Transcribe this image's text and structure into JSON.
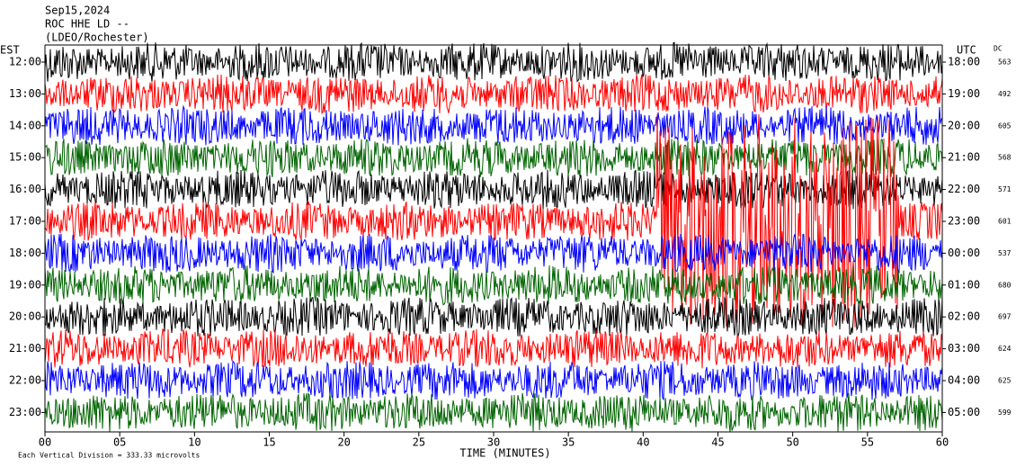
{
  "header": {
    "date": "Sep15,2024",
    "station": "ROC HHE LD --",
    "network": "(LDEO/Rochester)"
  },
  "chart_data": {
    "type": "helicorder",
    "left_label": "EST",
    "right_label": "UTC",
    "dc_label": "DC",
    "x_label": "TIME (MINUTES)",
    "note": "Each Vertical Division =  333.33 microvolts",
    "xlim": [
      0,
      60
    ],
    "xticks": [
      {
        "value": 0,
        "label": "00"
      },
      {
        "value": 5,
        "label": "05"
      },
      10,
      15,
      20,
      25,
      30,
      35,
      40,
      45,
      50,
      55,
      60
    ],
    "rows": [
      {
        "est": "12:00",
        "utc": "18:00",
        "dc": 563,
        "color": "#000000"
      },
      {
        "est": "13:00",
        "utc": "19:00",
        "dc": 492,
        "color": "#ff0000"
      },
      {
        "est": "14:00",
        "utc": "20:00",
        "dc": 605,
        "color": "#0000ff"
      },
      {
        "est": "15:00",
        "utc": "21:00",
        "dc": 568,
        "color": "#006400"
      },
      {
        "est": "16:00",
        "utc": "22:00",
        "dc": 571,
        "color": "#000000"
      },
      {
        "est": "17:00",
        "utc": "23:00",
        "dc": 601,
        "color": "#ff0000"
      },
      {
        "est": "18:00",
        "utc": "00:00",
        "dc": 537,
        "color": "#0000ff"
      },
      {
        "est": "19:00",
        "utc": "01:00",
        "dc": 680,
        "color": "#006400"
      },
      {
        "est": "20:00",
        "utc": "02:00",
        "dc": 697,
        "color": "#000000"
      },
      {
        "est": "21:00",
        "utc": "03:00",
        "dc": 624,
        "color": "#ff0000"
      },
      {
        "est": "22:00",
        "utc": "04:00",
        "dc": 625,
        "color": "#0000ff"
      },
      {
        "est": "23:00",
        "utc": "05:00",
        "dc": 599,
        "color": "#006400"
      }
    ]
  }
}
